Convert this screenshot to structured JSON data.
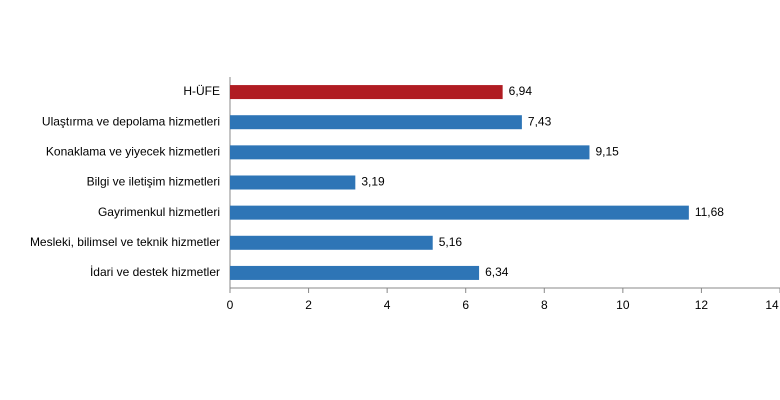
{
  "chart_data": {
    "type": "hbar",
    "categories": [
      "H-ÜFE",
      "Ulaştırma ve depolama hizmetleri",
      "Konaklama ve yiyecek hizmetleri",
      "Bilgi ve iletişim hizmetleri",
      "Gayrimenkul hizmetleri",
      "Mesleki, bilimsel ve teknik hizmetler",
      "İdari ve destek hizmetler"
    ],
    "values": [
      6.94,
      7.43,
      9.15,
      3.19,
      11.68,
      5.16,
      6.34
    ],
    "value_labels": [
      "6,94",
      "7,43",
      "9,15",
      "3,19",
      "11,68",
      "5,16",
      "6,34"
    ],
    "colors": [
      "#b01c22",
      "#2e75b6",
      "#2e75b6",
      "#2e75b6",
      "#2e75b6",
      "#2e75b6",
      "#2e75b6"
    ],
    "xlim": [
      0,
      14
    ],
    "xticks": [
      0,
      2,
      4,
      6,
      8,
      10,
      12,
      14
    ]
  }
}
